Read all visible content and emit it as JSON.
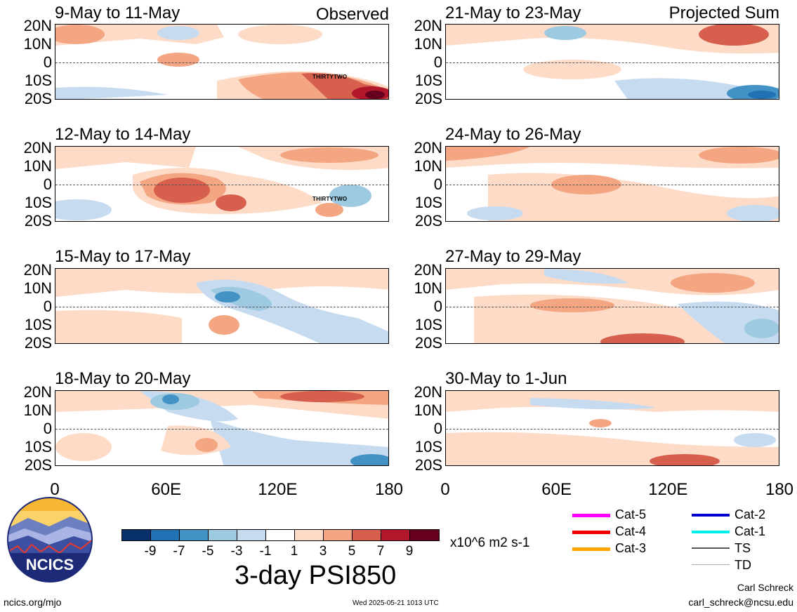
{
  "observed_label": "Observed",
  "projected_label": "Projected Sum",
  "left_panels": [
    {
      "title": "9-May to 11-May",
      "storm": "THIRTYTWO"
    },
    {
      "title": "12-May to 14-May",
      "storm": "THIRTYTWO"
    },
    {
      "title": "15-May to 17-May"
    },
    {
      "title": "18-May to 20-May"
    }
  ],
  "right_panels": [
    {
      "title": "21-May to 23-May"
    },
    {
      "title": "24-May to 26-May"
    },
    {
      "title": "27-May to 29-May"
    },
    {
      "title": "30-May to 1-Jun"
    }
  ],
  "lat_labels": [
    "20N",
    "10N",
    "0",
    "10S",
    "20S"
  ],
  "lon_labels": [
    "0",
    "60E",
    "120E",
    "180"
  ],
  "colorbar": {
    "colors": [
      "#08306b",
      "#2171b5",
      "#4292c6",
      "#9ecae1",
      "#c6dbef",
      "#ffffff",
      "#fddbc7",
      "#f4a582",
      "#d6604d",
      "#b2182b",
      "#67001f"
    ],
    "ticks": [
      "-9",
      "-7",
      "-5",
      "-3",
      "-1",
      "1",
      "3",
      "5",
      "7",
      "9"
    ],
    "units": "x10^6 m2 s-1"
  },
  "title": "3-day PSI850",
  "legend": [
    {
      "label": "Cat-5",
      "color": "#ff00ff"
    },
    {
      "label": "Cat-4",
      "color": "#ee0000"
    },
    {
      "label": "Cat-3",
      "color": "#ffa500"
    },
    {
      "label": "Cat-2",
      "color": "#0000cd"
    },
    {
      "label": "Cat-1",
      "color": "#00eeee"
    },
    {
      "label": "TS",
      "color": "#555555"
    },
    {
      "label": "TD",
      "color": "#aaaaaa"
    }
  ],
  "logo_text": "NCICS",
  "footer": {
    "url": "ncics.org/mjo",
    "timestamp": "Wed 2025-05-21 1013 UTC",
    "author": "Carl Schreck",
    "email": "carl_schreck@ncsu.edu"
  }
}
